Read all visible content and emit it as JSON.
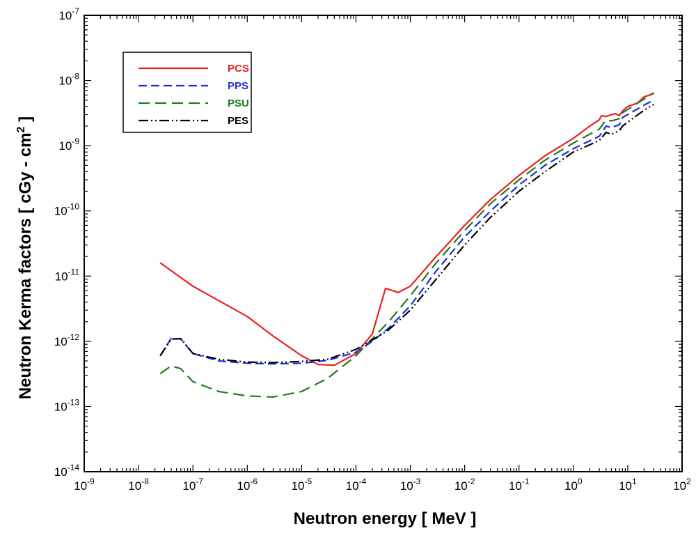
{
  "chart_data": {
    "type": "line",
    "xlabel": "Neutron energy   [  MeV  ]",
    "ylabel": "Neutron Kerma factors   [  cGy - cm",
    "ylabel_sup": "2",
    "ylabel_close": "  ]",
    "x_scale": "log",
    "y_scale": "log",
    "xlim": [
      1e-09,
      100
    ],
    "ylim": [
      1e-14,
      1e-07
    ],
    "x_ticks": [
      {
        "base": "10",
        "exp": "-9",
        "value": 1e-09
      },
      {
        "base": "10",
        "exp": "-8",
        "value": 1e-08
      },
      {
        "base": "10",
        "exp": "-7",
        "value": 1e-07
      },
      {
        "base": "10",
        "exp": "-6",
        "value": 1e-06
      },
      {
        "base": "10",
        "exp": "-5",
        "value": 1e-05
      },
      {
        "base": "10",
        "exp": "-4",
        "value": 0.0001
      },
      {
        "base": "10",
        "exp": "-3",
        "value": 0.001
      },
      {
        "base": "10",
        "exp": "-2",
        "value": 0.01
      },
      {
        "base": "10",
        "exp": "-1",
        "value": 0.1
      },
      {
        "base": "10",
        "exp": "0",
        "value": 1
      },
      {
        "base": "10",
        "exp": "1",
        "value": 10
      },
      {
        "base": "10",
        "exp": "2",
        "value": 100
      }
    ],
    "y_ticks": [
      {
        "base": "10",
        "exp": "-14",
        "value": 1e-14
      },
      {
        "base": "10",
        "exp": "-13",
        "value": 1e-13
      },
      {
        "base": "10",
        "exp": "-12",
        "value": 1e-12
      },
      {
        "base": "10",
        "exp": "-11",
        "value": 1e-11
      },
      {
        "base": "10",
        "exp": "-10",
        "value": 1e-10
      },
      {
        "base": "10",
        "exp": "-9",
        "value": 1e-09
      },
      {
        "base": "10",
        "exp": "-8",
        "value": 1e-08
      },
      {
        "base": "10",
        "exp": "-7",
        "value": 1e-07
      }
    ],
    "grid": false,
    "legend_position": "top-left",
    "series": [
      {
        "name": "PCS",
        "color": "#e8201e",
        "dash": "solid",
        "points": [
          [
            2.5e-08,
            1.6e-11
          ],
          [
            1e-07,
            7e-12
          ],
          [
            1e-06,
            2.4e-12
          ],
          [
            3e-06,
            1.2e-12
          ],
          [
            1e-05,
            6e-13
          ],
          [
            2e-05,
            4.4e-13
          ],
          [
            4e-05,
            4.3e-13
          ],
          [
            0.0001,
            6.5e-13
          ],
          [
            0.0002,
            1.3e-12
          ],
          [
            0.00035,
            6.5e-12
          ],
          [
            0.0006,
            5.6e-12
          ],
          [
            0.001,
            7e-12
          ],
          [
            0.003,
            2e-11
          ],
          [
            0.01,
            6e-11
          ],
          [
            0.03,
            1.5e-10
          ],
          [
            0.1,
            3.5e-10
          ],
          [
            0.3,
            7e-10
          ],
          [
            1,
            1.3e-09
          ],
          [
            2,
            2e-09
          ],
          [
            3,
            2.5e-09
          ],
          [
            3.3,
            2.9e-09
          ],
          [
            4,
            2.8e-09
          ],
          [
            5,
            3e-09
          ],
          [
            6,
            3.1e-09
          ],
          [
            7,
            2.9e-09
          ],
          [
            8,
            3.4e-09
          ],
          [
            10,
            4e-09
          ],
          [
            15,
            4.5e-09
          ],
          [
            20,
            5.6e-09
          ],
          [
            30,
            6.3e-09
          ]
        ]
      },
      {
        "name": "PPS",
        "color": "#1a2ee0",
        "dash": "12 6",
        "points": [
          [
            2.5e-08,
            6e-13
          ],
          [
            4e-08,
            1.12e-12
          ],
          [
            6e-08,
            1.08e-12
          ],
          [
            1e-07,
            6.5e-13
          ],
          [
            3e-07,
            5e-13
          ],
          [
            1e-06,
            4.6e-13
          ],
          [
            3e-06,
            4.5e-13
          ],
          [
            1e-05,
            4.6e-13
          ],
          [
            3e-05,
            5.1e-13
          ],
          [
            0.0001,
            6.8e-13
          ],
          [
            0.0002,
            1e-12
          ],
          [
            0.0004,
            1.6e-12
          ],
          [
            0.001,
            3.5e-12
          ],
          [
            0.003,
            1.2e-11
          ],
          [
            0.01,
            4e-11
          ],
          [
            0.03,
            1e-10
          ],
          [
            0.1,
            2.5e-10
          ],
          [
            0.3,
            5e-10
          ],
          [
            1,
            9e-10
          ],
          [
            3,
            1.4e-09
          ],
          [
            4,
            2e-09
          ],
          [
            5,
            1.9e-09
          ],
          [
            7,
            2.1e-09
          ],
          [
            8,
            2.7e-09
          ],
          [
            10,
            3e-09
          ],
          [
            20,
            4.2e-09
          ],
          [
            30,
            5e-09
          ]
        ]
      },
      {
        "name": "PSU",
        "color": "#1f7a1f",
        "dash": "16 8",
        "points": [
          [
            2.5e-08,
            3.2e-13
          ],
          [
            4e-08,
            4.2e-13
          ],
          [
            6e-08,
            3.8e-13
          ],
          [
            1e-07,
            2.4e-13
          ],
          [
            3e-07,
            1.7e-13
          ],
          [
            1e-06,
            1.45e-13
          ],
          [
            3e-06,
            1.4e-13
          ],
          [
            1e-05,
            1.7e-13
          ],
          [
            3e-05,
            2.7e-13
          ],
          [
            0.0001,
            6e-13
          ],
          [
            0.0002,
            1.1e-12
          ],
          [
            0.0004,
            2e-12
          ],
          [
            0.001,
            5e-12
          ],
          [
            0.003,
            1.6e-11
          ],
          [
            0.01,
            5e-11
          ],
          [
            0.03,
            1.3e-10
          ],
          [
            0.1,
            3e-10
          ],
          [
            0.3,
            6e-10
          ],
          [
            1,
            1.1e-09
          ],
          [
            3,
            1.8e-09
          ],
          [
            4,
            2.5e-09
          ],
          [
            5,
            2.4e-09
          ],
          [
            7,
            2.6e-09
          ],
          [
            8,
            3.2e-09
          ],
          [
            10,
            3.6e-09
          ],
          [
            20,
            5.2e-09
          ],
          [
            30,
            6.5e-09
          ]
        ]
      },
      {
        "name": "PES",
        "color": "#000000",
        "dash": "14 4 2 4 2 4",
        "points": [
          [
            2.5e-08,
            6e-13
          ],
          [
            4e-08,
            1.08e-12
          ],
          [
            6e-08,
            1.1e-12
          ],
          [
            1e-07,
            6.5e-13
          ],
          [
            3e-07,
            5.3e-13
          ],
          [
            1e-06,
            4.8e-13
          ],
          [
            3e-06,
            4.7e-13
          ],
          [
            1e-05,
            4.9e-13
          ],
          [
            3e-05,
            5.3e-13
          ],
          [
            0.0001,
            7.5e-13
          ],
          [
            0.0002,
            1.05e-12
          ],
          [
            0.0004,
            1.5e-12
          ],
          [
            0.001,
            3e-12
          ],
          [
            0.003,
            9e-12
          ],
          [
            0.01,
            3e-11
          ],
          [
            0.03,
            8e-11
          ],
          [
            0.1,
            2e-10
          ],
          [
            0.3,
            4e-10
          ],
          [
            1,
            8e-10
          ],
          [
            3,
            1.2e-09
          ],
          [
            4,
            1.6e-09
          ],
          [
            5,
            1.5e-09
          ],
          [
            7,
            1.7e-09
          ],
          [
            8,
            2e-09
          ],
          [
            10,
            2.3e-09
          ],
          [
            20,
            3.5e-09
          ],
          [
            30,
            4.3e-09
          ]
        ]
      }
    ]
  }
}
